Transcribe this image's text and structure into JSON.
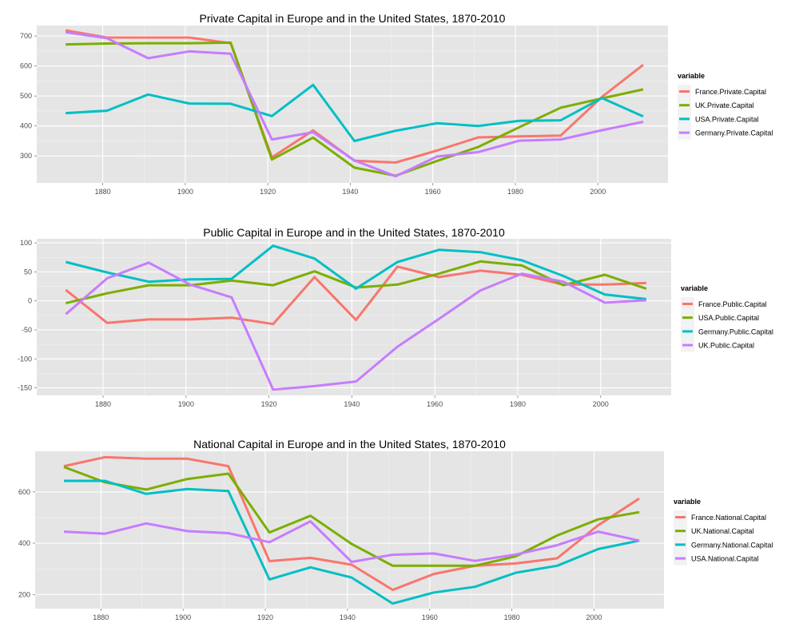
{
  "chart_data": [
    {
      "type": "line",
      "title": "Private Capital in Europe and in the United States, 1870-2010",
      "xlabel": "",
      "ylabel": "",
      "xlim": [
        1864,
        2017
      ],
      "ylim": [
        210,
        735
      ],
      "x_ticks": [
        1880,
        1900,
        1920,
        1940,
        1960,
        1980,
        2000
      ],
      "y_ticks": [
        300,
        400,
        500,
        600,
        700
      ],
      "grid": true,
      "legend_title": "variable",
      "legend_position": "right",
      "x": [
        1871,
        1881,
        1891,
        1901,
        1911,
        1921,
        1931,
        1941,
        1951,
        1961,
        1971,
        1981,
        1991,
        2001,
        2011
      ],
      "series": [
        {
          "name": "France.Private.Capital",
          "color": "#F8766D",
          "values": [
            719,
            695,
            695,
            695,
            676,
            295,
            385,
            284,
            278,
            318,
            362,
            365,
            368,
            497,
            604
          ]
        },
        {
          "name": "UK.Private.Capital",
          "color": "#7CAE00",
          "values": [
            672,
            675,
            676,
            676,
            678,
            288,
            361,
            261,
            234,
            283,
            330,
            396,
            461,
            492,
            522
          ]
        },
        {
          "name": "USA.Private.Capital",
          "color": "#00BFC4",
          "values": [
            443,
            451,
            505,
            475,
            474,
            433,
            537,
            350,
            384,
            409,
            400,
            417,
            419,
            493,
            432
          ]
        },
        {
          "name": "Germany.Private.Capital",
          "color": "#C77CFF",
          "values": [
            713,
            693,
            626,
            649,
            641,
            355,
            379,
            285,
            232,
            298,
            313,
            351,
            355,
            386,
            414
          ]
        }
      ]
    },
    {
      "type": "line",
      "title": "Public Capital in Europe and in the United States, 1870-2010",
      "xlabel": "",
      "ylabel": "",
      "xlim": [
        1864,
        2017
      ],
      "ylim": [
        -163,
        107
      ],
      "x_ticks": [
        1880,
        1900,
        1920,
        1940,
        1960,
        1980,
        2000
      ],
      "y_ticks": [
        -150,
        -100,
        -50,
        0,
        50,
        100
      ],
      "grid": true,
      "legend_title": "variable",
      "legend_position": "right",
      "x": [
        1871,
        1881,
        1891,
        1901,
        1911,
        1921,
        1931,
        1941,
        1951,
        1961,
        1971,
        1981,
        1991,
        2001,
        2011
      ],
      "series": [
        {
          "name": "France.Public.Capital",
          "color": "#F8766D",
          "values": [
            19,
            -38,
            -32,
            -32,
            -29,
            -40,
            41,
            -33,
            59,
            41,
            52,
            45,
            28,
            28,
            31
          ]
        },
        {
          "name": "USA.Public.Capital",
          "color": "#7CAE00",
          "values": [
            -4,
            13,
            27,
            27,
            35,
            27,
            51,
            23,
            28,
            47,
            68,
            61,
            27,
            45,
            21
          ]
        },
        {
          "name": "Germany.Public.Capital",
          "color": "#00BFC4",
          "values": [
            67,
            49,
            33,
            37,
            38,
            95,
            73,
            21,
            67,
            88,
            84,
            70,
            43,
            11,
            3
          ]
        },
        {
          "name": "UK.Public.Capital",
          "color": "#C77CFF",
          "values": [
            -23,
            39,
            66,
            28,
            6,
            -153,
            -147,
            -139,
            -79,
            -31,
            18,
            47,
            33,
            -3,
            1
          ]
        }
      ]
    },
    {
      "type": "line",
      "title": "National Capital in Europe and in the United States, 1870-2010",
      "xlabel": "",
      "ylabel": "",
      "xlim": [
        1864,
        2017
      ],
      "ylim": [
        145,
        758
      ],
      "x_ticks": [
        1880,
        1900,
        1920,
        1940,
        1960,
        1980,
        2000
      ],
      "y_ticks": [
        200,
        400,
        600
      ],
      "grid": true,
      "legend_title": "variable",
      "legend_position": "right",
      "x": [
        1871,
        1881,
        1891,
        1901,
        1911,
        1921,
        1931,
        1941,
        1951,
        1961,
        1971,
        1981,
        1991,
        2001,
        2011
      ],
      "series": [
        {
          "name": "France.National.Capital",
          "color": "#F8766D",
          "values": [
            700,
            735,
            729,
            729,
            700,
            330,
            343,
            316,
            218,
            280,
            312,
            321,
            341,
            470,
            574
          ]
        },
        {
          "name": "UK.National.Capital",
          "color": "#7CAE00",
          "values": [
            697,
            637,
            609,
            650,
            671,
            442,
            507,
            397,
            312,
            312,
            312,
            349,
            430,
            493,
            521
          ]
        },
        {
          "name": "Germany.National.Capital",
          "color": "#00BFC4",
          "values": [
            643,
            643,
            592,
            611,
            603,
            259,
            306,
            266,
            165,
            208,
            230,
            285,
            312,
            377,
            410
          ]
        },
        {
          "name": "USA.National.Capital",
          "color": "#C77CFF",
          "values": [
            445,
            437,
            477,
            447,
            439,
            404,
            485,
            327,
            355,
            360,
            331,
            356,
            392,
            445,
            410
          ]
        }
      ]
    }
  ]
}
